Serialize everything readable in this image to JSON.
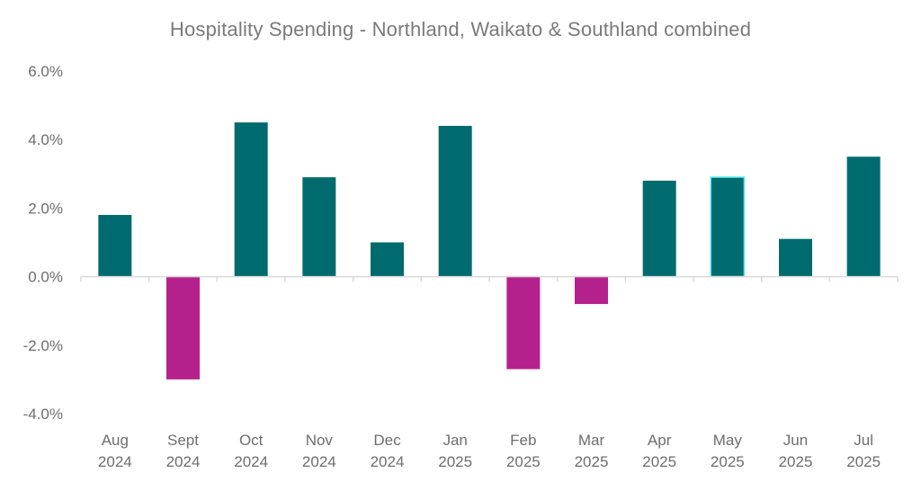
{
  "chart_data": {
    "type": "bar",
    "title": "Hospitality Spending - Northland, Waikato & Southland combined",
    "xlabel": "",
    "ylabel": "",
    "categories": [
      [
        "Aug",
        "2024"
      ],
      [
        "Sept",
        "2024"
      ],
      [
        "Oct",
        "2024"
      ],
      [
        "Nov",
        "2024"
      ],
      [
        "Dec",
        "2024"
      ],
      [
        "Jan",
        "2025"
      ],
      [
        "Feb",
        "2025"
      ],
      [
        "Mar",
        "2025"
      ],
      [
        "Apr",
        "2025"
      ],
      [
        "May",
        "2025"
      ],
      [
        "Jun",
        "2025"
      ],
      [
        "Jul",
        "2025"
      ]
    ],
    "values": [
      1.8,
      -3.0,
      4.5,
      2.9,
      1.0,
      4.4,
      -2.7,
      -0.8,
      2.8,
      2.9,
      1.1,
      3.5
    ],
    "ylim": [
      -4.0,
      6.0
    ],
    "yticks": [
      6.0,
      4.0,
      2.0,
      0.0,
      -2.0,
      -4.0
    ],
    "ytick_labels": [
      "6.0%",
      "4.0%",
      "2.0%",
      "0.0%",
      "-2.0%",
      "-4.0%"
    ],
    "grid": false,
    "legend": "none",
    "colors": {
      "positive": "#006b6e",
      "negative": "#b5218c",
      "highlight_outline": "#4fe3e8",
      "axis": "#d9d9d9",
      "text": "#6e6e6e",
      "title": "#7a7a7a"
    },
    "highlighted_category_index": 9
  }
}
